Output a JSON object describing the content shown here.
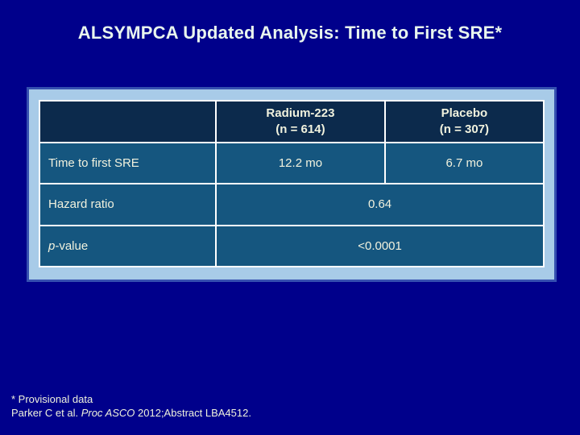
{
  "title": "ALSYMPCA Updated Analysis: Time to First SRE*",
  "table": {
    "header": {
      "corner": "",
      "radium_line1": "Radium-223",
      "radium_line2": "(n = 614)",
      "placebo_line1": "Placebo",
      "placebo_line2": "(n = 307)"
    },
    "rows": {
      "time_to_sre": {
        "label": "Time to first SRE",
        "radium": "12.2 mo",
        "placebo": "6.7 mo"
      },
      "hazard_ratio": {
        "label": "Hazard ratio",
        "value": "0.64"
      },
      "p_value": {
        "label_italic": "p",
        "label_suffix": "-value",
        "value": "<0.0001"
      }
    }
  },
  "footnote": {
    "line1": "* Provisional data",
    "line2_prefix": "Parker C et al. ",
    "line2_italic": "Proc ASCO",
    "line2_suffix": " 2012;Abstract LBA4512."
  },
  "colors": {
    "slide_background": "#00008B",
    "panel_background": "#A8CBE8",
    "panel_border": "#3550B0",
    "header_cell_background": "#0C2A4C",
    "body_cell_background": "#15567F",
    "grid_lines": "#FFFFFF",
    "title_text": "#E9F6EE",
    "cell_text": "#F1F2DE"
  }
}
